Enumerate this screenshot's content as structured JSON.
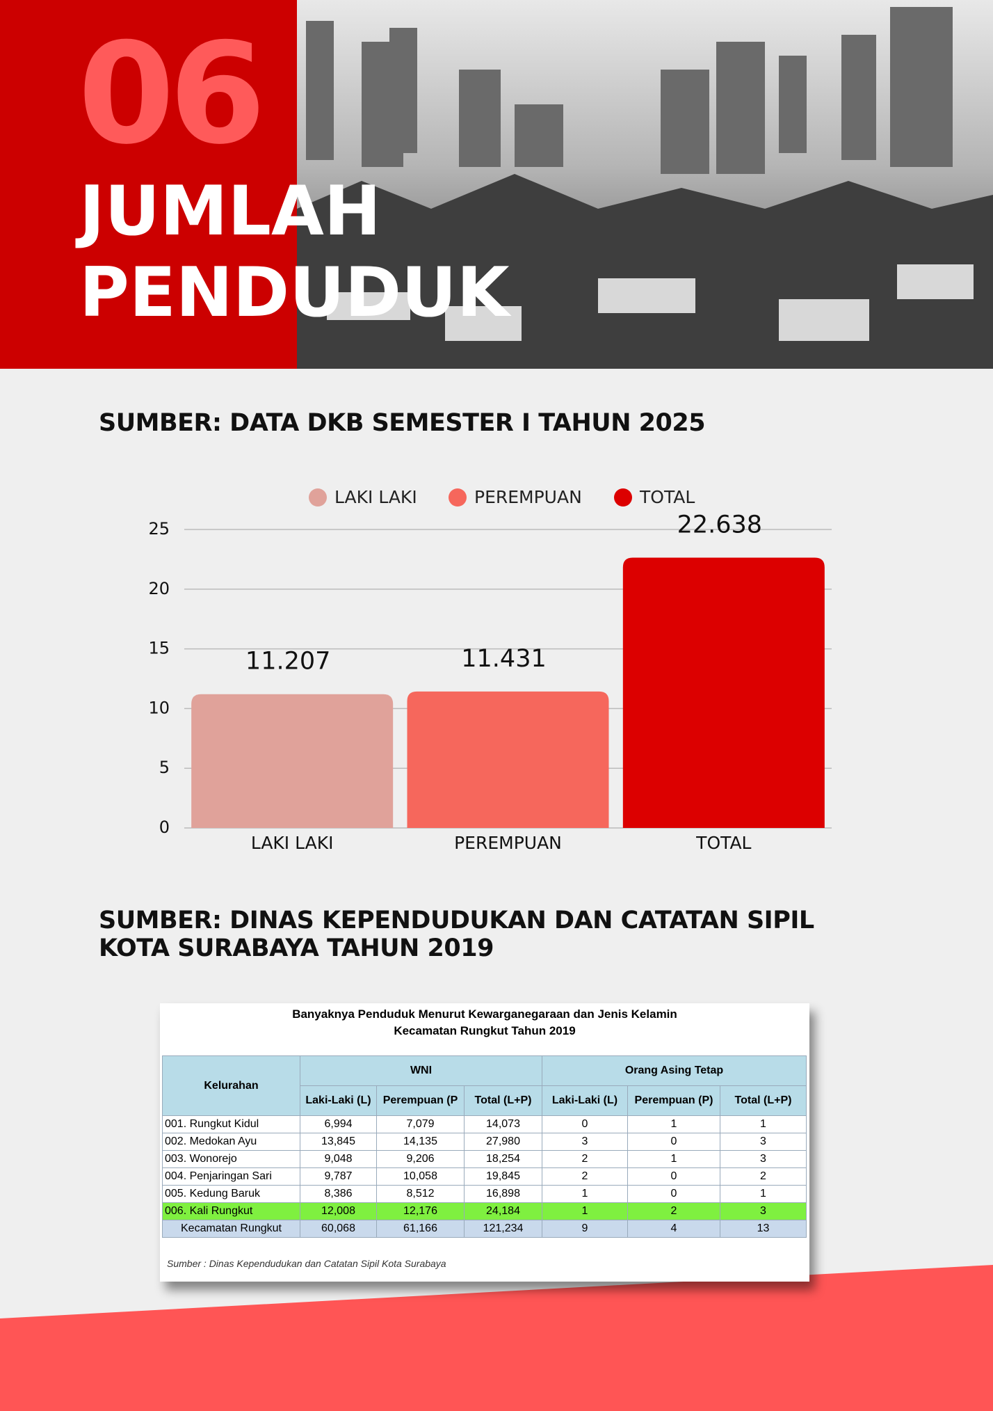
{
  "header": {
    "number": "06",
    "title_lines": [
      "JUMLAH",
      "PENDUDUK"
    ]
  },
  "section_1": {
    "title": "SUMBER: DATA DKB SEMESTER I TAHUN 2025"
  },
  "chart_data": {
    "type": "bar",
    "categories": [
      "LAKI LAKI",
      "PEREMPUAN",
      "TOTAL"
    ],
    "values": [
      11.207,
      11.431,
      22.638
    ],
    "colors": [
      "#e0a29a",
      "#f6675c",
      "#dc0000"
    ],
    "ylim": [
      0,
      25
    ],
    "yticks": [
      0,
      5,
      10,
      15,
      20,
      25
    ],
    "grid": true,
    "legend": "top"
  },
  "section_2": {
    "title_lines": [
      "SUMBER: DINAS KEPENDUDUKAN DAN CATATAN SIPIL",
      "KOTA SURABAYA TAHUN 2019"
    ]
  },
  "table": {
    "title_lines": [
      "Banyaknya Penduduk Menurut Kewarganegaraan dan Jenis Kelamin",
      "Kecamatan Rungkut Tahun 2019"
    ],
    "group_headers": [
      "Kelurahan",
      "WNI",
      "Orang Asing Tetap"
    ],
    "sub_headers": [
      "Laki-Laki (L)",
      "Perempuan (P",
      "Total (L+P)",
      "Laki-Laki (L)",
      "Perempuan (P)",
      "Total (L+P)"
    ],
    "rows": [
      [
        "001. Rungkut Kidul",
        "6,994",
        "7,079",
        "14,073",
        "0",
        "1",
        "1"
      ],
      [
        "002. Medokan Ayu",
        "13,845",
        "14,135",
        "27,980",
        "3",
        "0",
        "3"
      ],
      [
        "003. Wonorejo",
        "9,048",
        "9,206",
        "18,254",
        "2",
        "1",
        "3"
      ],
      [
        "004. Penjaringan Sari",
        "9,787",
        "10,058",
        "19,845",
        "2",
        "0",
        "2"
      ],
      [
        "005. Kedung Baruk",
        "8,386",
        "8,512",
        "16,898",
        "1",
        "0",
        "1"
      ],
      [
        "006. Kali Rungkut",
        "12,008",
        "12,176",
        "24,184",
        "1",
        "2",
        "3"
      ],
      [
        "Kecamatan Rungkut",
        "60,068",
        "61,166",
        "121,234",
        "9",
        "4",
        "13"
      ]
    ],
    "note": "Sumber : Dinas Kependudukan dan Catatan Sipil Kota Surabaya"
  }
}
